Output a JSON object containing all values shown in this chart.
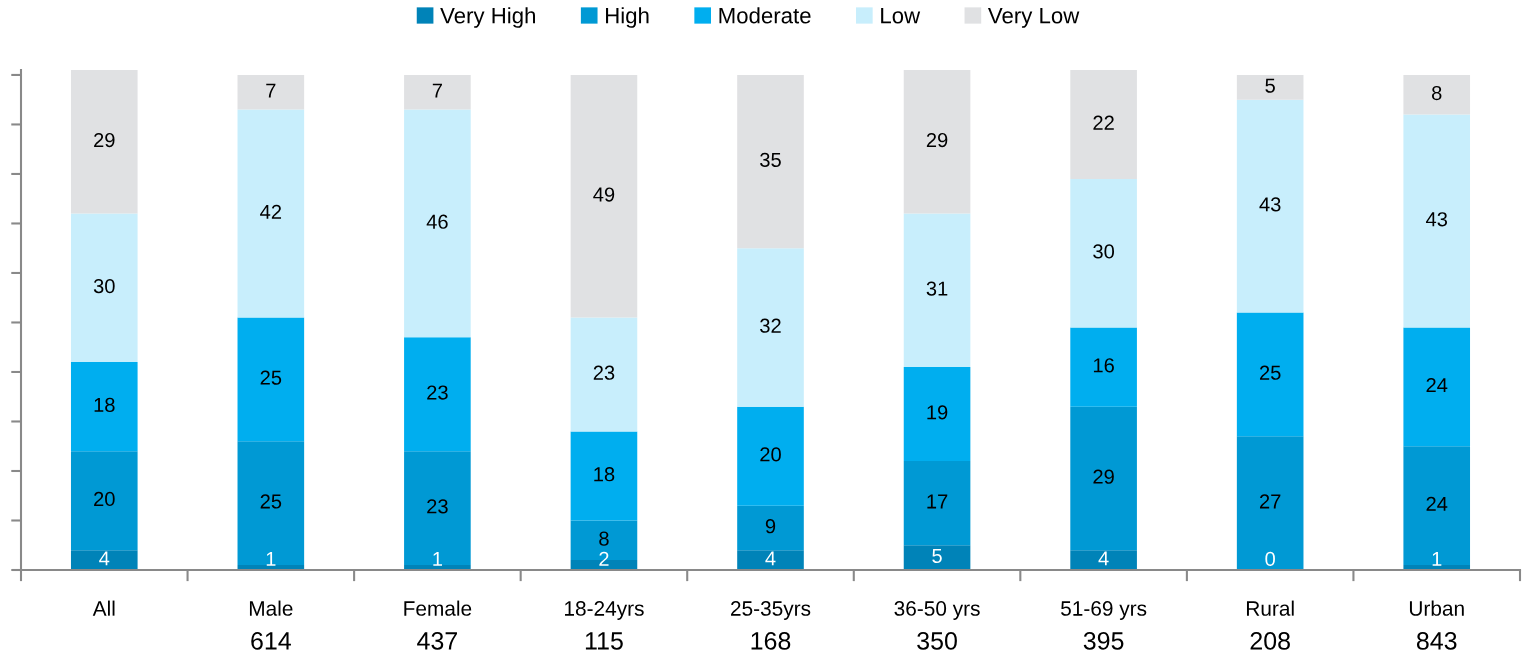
{
  "chart_data": {
    "type": "bar",
    "stacked": true,
    "legend": "top",
    "data_labels": true,
    "tick_labels": "x",
    "categories": [
      "All",
      "Male",
      "Female",
      "18-24yrs",
      "25-35yrs",
      "36-50 yrs",
      "51-69 yrs",
      "Rural",
      "Urban"
    ],
    "series": [
      {
        "name": "Very High",
        "color": "#0083b8",
        "values": [
          4,
          1,
          1,
          2,
          4,
          5,
          4,
          0,
          1
        ]
      },
      {
        "name": "High",
        "color": "#0099d4",
        "values": [
          20,
          25,
          23,
          8,
          9,
          17,
          29,
          27,
          24
        ]
      },
      {
        "name": "Moderate",
        "color": "#00aeef",
        "values": [
          18,
          25,
          23,
          18,
          20,
          19,
          16,
          25,
          24
        ]
      },
      {
        "name": "Low",
        "color": "#c8eefc",
        "values": [
          30,
          42,
          46,
          23,
          32,
          31,
          30,
          43,
          43
        ]
      },
      {
        "name": "Very Low",
        "color": "#e0e1e3",
        "values": [
          29,
          7,
          7,
          49,
          35,
          29,
          22,
          5,
          8
        ]
      }
    ],
    "ylim": [
      0,
      101
    ],
    "yticks": [
      {
        "value": 0,
        "label": null
      },
      {
        "value": 10,
        "label": null
      },
      {
        "value": 20,
        "label": null
      },
      {
        "value": 30,
        "label": null
      },
      {
        "value": 40,
        "label": null
      },
      {
        "value": 50,
        "label": null
      },
      {
        "value": 60,
        "label": null
      },
      {
        "value": 70,
        "label": null
      },
      {
        "value": 80,
        "label": null
      },
      {
        "value": 90,
        "label": null
      },
      {
        "value": 100,
        "label": null
      }
    ],
    "annotations": [
      "614",
      "437",
      "115",
      "168",
      "350",
      "395",
      "208",
      "843"
    ]
  }
}
